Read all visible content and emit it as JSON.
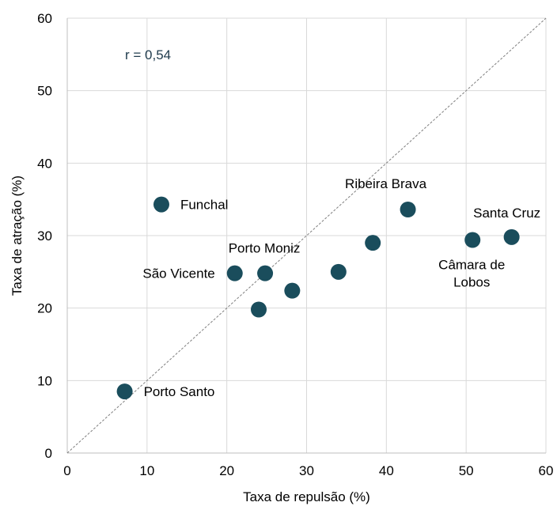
{
  "chart_data": {
    "type": "scatter",
    "title": "",
    "xlabel": "Taxa de repulsão (%)",
    "ylabel": "Taxa de atração (%)",
    "xlim": [
      0,
      60
    ],
    "ylim": [
      0,
      60
    ],
    "xticks": [
      "0",
      "10",
      "20",
      "30",
      "40",
      "50",
      "60"
    ],
    "yticks": [
      "0",
      "10",
      "20",
      "30",
      "40",
      "50",
      "60"
    ],
    "grid": true,
    "annotation": "r = 0,54",
    "reference_line": "y = x",
    "point_color": "#1a4d5c",
    "points": [
      {
        "x": 11.8,
        "y": 34.3,
        "label": "Funchal"
      },
      {
        "x": 7.2,
        "y": 8.5,
        "label": "Porto Santo"
      },
      {
        "x": 21.0,
        "y": 24.8,
        "label": "São Vicente"
      },
      {
        "x": 24.8,
        "y": 24.8,
        "label": "Porto Moniz"
      },
      {
        "x": 24.0,
        "y": 19.8,
        "label": ""
      },
      {
        "x": 28.2,
        "y": 22.4,
        "label": ""
      },
      {
        "x": 34.0,
        "y": 25.0,
        "label": ""
      },
      {
        "x": 38.3,
        "y": 29.0,
        "label": ""
      },
      {
        "x": 42.7,
        "y": 33.6,
        "label": "Ribeira Brava"
      },
      {
        "x": 50.8,
        "y": 29.4,
        "label": "Câmara de\nLobos"
      },
      {
        "x": 55.7,
        "y": 29.8,
        "label": "Santa Cruz"
      }
    ]
  }
}
